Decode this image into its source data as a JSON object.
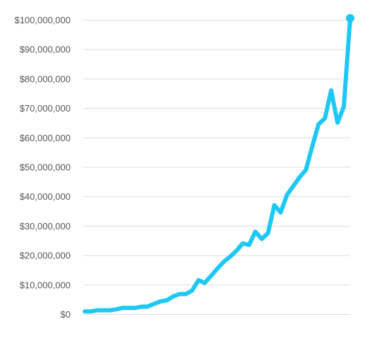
{
  "chart_data": {
    "type": "line",
    "title": "",
    "xlabel": "",
    "ylabel": "",
    "grid": true,
    "ylim": [
      0,
      100000000
    ],
    "yticks": [
      {
        "value": 0,
        "label": "$0"
      },
      {
        "value": 10000000,
        "label": "$10,000,000"
      },
      {
        "value": 20000000,
        "label": "$20,000,000"
      },
      {
        "value": 30000000,
        "label": "$30,000,000"
      },
      {
        "value": 40000000,
        "label": "$40,000,000"
      },
      {
        "value": 50000000,
        "label": "$50,000,000"
      },
      {
        "value": 60000000,
        "label": "$60,000,000"
      },
      {
        "value": 70000000,
        "label": "$70,000,000"
      },
      {
        "value": 80000000,
        "label": "$80,000,000"
      },
      {
        "value": 90000000,
        "label": "$90,000,000"
      },
      {
        "value": 100000000,
        "label": "$100,000,000"
      }
    ],
    "x": [
      1,
      2,
      3,
      4,
      5,
      6,
      7,
      8,
      9,
      10,
      11,
      12,
      13,
      14,
      15,
      16,
      17,
      18,
      19,
      20,
      21,
      22,
      23,
      24,
      25,
      26,
      27,
      28,
      29,
      30,
      31,
      32,
      33,
      34,
      35,
      36,
      37,
      38,
      39,
      40,
      41,
      42,
      43,
      44,
      45,
      46,
      47,
      48,
      49,
      50
    ],
    "xlim": [
      1,
      50
    ],
    "series": [
      {
        "color": "#1ec8f5",
        "values": [
          900000,
          900000,
          1300000,
          1300000,
          1300000,
          1600000,
          2100000,
          2100000,
          2100000,
          2500000,
          2600000,
          3500000,
          4300000,
          4700000,
          6000000,
          6800000,
          6800000,
          8000000,
          11500000,
          10600000,
          13000000,
          15500000,
          17800000,
          19500000,
          21500000,
          24000000,
          23500000,
          28000000,
          25500000,
          27500000,
          37000000,
          34500000,
          40500000,
          43500000,
          46500000,
          49000000,
          57000000,
          64500000,
          66500000,
          76000000,
          65000000,
          70500000,
          100500000
        ],
        "x": [
          1,
          2,
          3,
          4,
          5,
          6,
          7,
          8,
          9,
          10,
          11,
          12,
          13,
          14,
          15,
          16,
          17,
          18,
          19,
          20,
          21,
          22,
          23,
          24,
          25,
          26,
          27,
          28,
          29,
          30,
          31,
          32,
          33,
          34,
          35,
          36,
          37,
          38,
          39,
          40,
          41,
          42,
          43
        ]
      }
    ],
    "end_marker": true
  }
}
